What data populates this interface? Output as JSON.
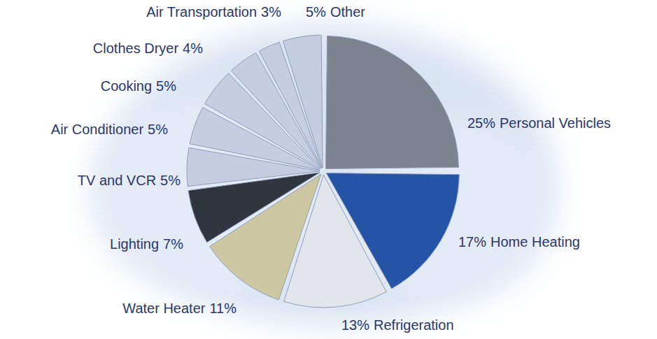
{
  "chart_data": {
    "type": "pie",
    "categories": [
      "Personal Vehicles",
      "Home Heating",
      "Refrigeration",
      "Water Heater",
      "Lighting",
      "TV and VCR",
      "Air Conditioner",
      "Cooking",
      "Clothes Dryer",
      "Air Transportation",
      "Other"
    ],
    "values": [
      25,
      17,
      13,
      11,
      7,
      5,
      5,
      5,
      4,
      3,
      5
    ],
    "value_labels": [
      "25%",
      "17%",
      "13%",
      "11%",
      "7%",
      "5%",
      "5%",
      "5%",
      "4%",
      "3%",
      "5%"
    ],
    "colors": [
      "#7b838f",
      "#2553a6",
      "#e2e6ec",
      "#cdc7a2",
      "#30363f",
      "#c4cee0",
      "#c4cee0",
      "#c4cee0",
      "#c4cee0",
      "#c4cee0",
      "#c4cee0"
    ],
    "data_labels": true
  }
}
